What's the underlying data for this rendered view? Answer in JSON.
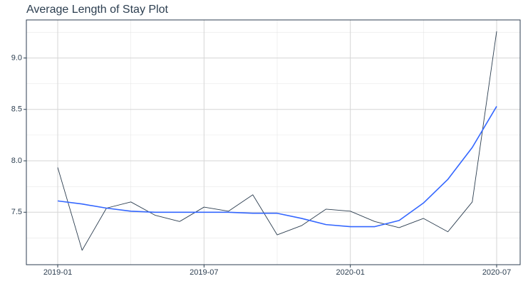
{
  "chart_data": {
    "type": "line",
    "title": "Average Length of Stay Plot",
    "categories": [
      "2019-01",
      null,
      null,
      null,
      null,
      null,
      "2019-07",
      null,
      null,
      null,
      null,
      null,
      "2020-01",
      null,
      null,
      null,
      null,
      null,
      "2020-07"
    ],
    "series": [
      {
        "color": "#2c3e50",
        "values": [
          7.935,
          7.13,
          7.54,
          7.6,
          7.47,
          7.41,
          7.55,
          7.51,
          7.67,
          7.28,
          7.37,
          7.53,
          7.51,
          7.41,
          7.35,
          7.44,
          7.31,
          7.6,
          9.26
        ]
      },
      {
        "color": "#3366ff",
        "values": [
          7.61,
          7.58,
          7.54,
          7.51,
          7.5,
          7.5,
          7.5,
          7.5,
          7.49,
          7.49,
          7.44,
          7.38,
          7.36,
          7.36,
          7.42,
          7.59,
          7.82,
          8.13,
          8.53
        ]
      }
    ],
    "ylim": [
      6.99,
      9.37
    ],
    "yticks": [
      {
        "value": 7.5,
        "label": "7.5"
      },
      {
        "value": 8,
        "label": "8.0"
      },
      {
        "value": 8.5,
        "label": "8.5"
      },
      {
        "value": 9,
        "label": "9.0"
      }
    ],
    "minor_yticks": [
      7.25,
      7.75,
      8.25,
      8.75,
      9.25
    ],
    "grid": true
  }
}
